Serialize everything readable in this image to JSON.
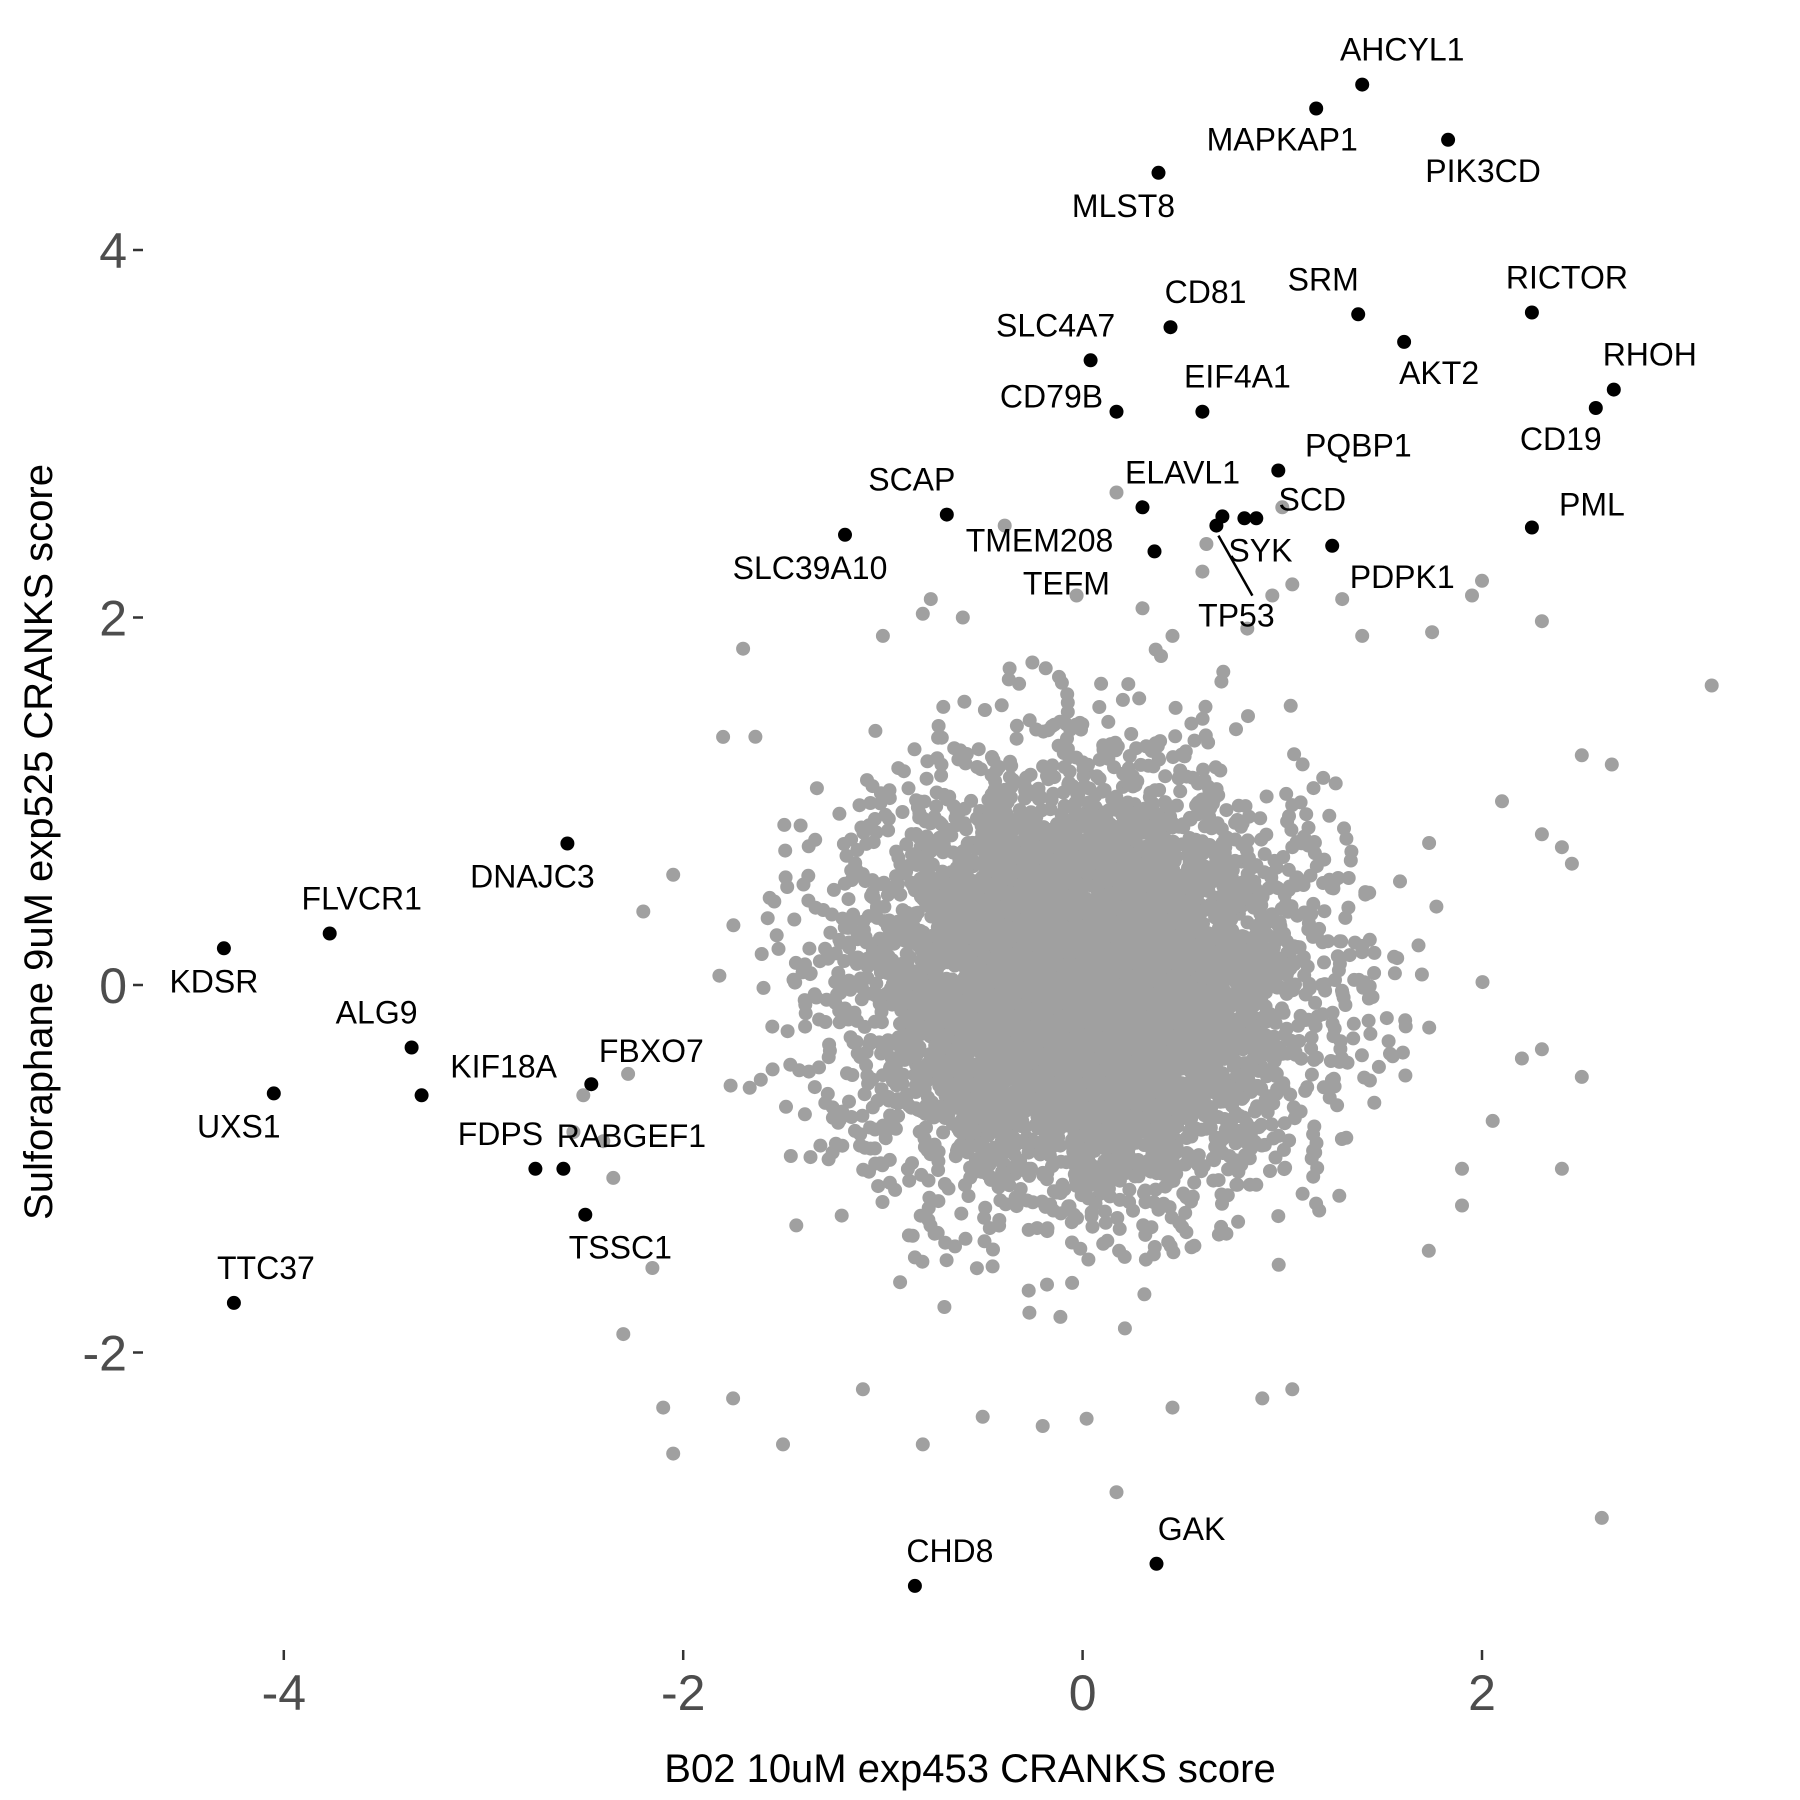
{
  "chart_data": {
    "type": "scatter",
    "xlabel": "B02 10uM exp453 CRANKS score",
    "ylabel": "Sulforaphane 9uM exp525 CRANKS score",
    "xlim": [
      -5.4,
      3.6
    ],
    "ylim": [
      -3.6,
      5.3
    ],
    "x_ticks": [
      {
        "value": -4,
        "label": "-4"
      },
      {
        "value": -2,
        "label": "-2"
      },
      {
        "value": 0,
        "label": "0"
      },
      {
        "value": 2,
        "label": "2"
      }
    ],
    "y_ticks": [
      {
        "value": -2,
        "label": "-2"
      },
      {
        "value": 0,
        "label": "0"
      },
      {
        "value": 2,
        "label": "2"
      },
      {
        "value": 4,
        "label": "4"
      }
    ],
    "grid": false,
    "background_color": "#ffffff",
    "highlight_color": "#000000",
    "background_point_color": "#a0a0a0",
    "background_cloud": {
      "description_of_distribution": "dense roughly circular cloud of unlabeled genes",
      "center": [
        0.0,
        0.0
      ],
      "sd": [
        0.55,
        0.55
      ]
    },
    "background_points": [
      {
        "x": 0.17,
        "y": 2.68
      },
      {
        "x": -0.39,
        "y": 2.5
      },
      {
        "x": -0.76,
        "y": 2.1
      },
      {
        "x": -0.6,
        "y": 2.0
      },
      {
        "x": -0.8,
        "y": 2.02
      },
      {
        "x": -1.7,
        "y": 1.83
      },
      {
        "x": -1.0,
        "y": 1.9
      },
      {
        "x": 0.95,
        "y": 2.12
      },
      {
        "x": 1.05,
        "y": 2.18
      },
      {
        "x": 1.4,
        "y": 1.9
      },
      {
        "x": 1.75,
        "y": 1.92
      },
      {
        "x": 1.95,
        "y": 2.12
      },
      {
        "x": 2.0,
        "y": 2.2
      },
      {
        "x": 2.3,
        "y": 1.98
      },
      {
        "x": 3.15,
        "y": 1.63
      },
      {
        "x": 2.5,
        "y": 1.25
      },
      {
        "x": 2.65,
        "y": 1.2
      },
      {
        "x": 2.1,
        "y": 1.0
      },
      {
        "x": 2.3,
        "y": 0.82
      },
      {
        "x": 2.4,
        "y": 0.75
      },
      {
        "x": 2.45,
        "y": 0.66
      },
      {
        "x": 2.3,
        "y": -0.35
      },
      {
        "x": 2.2,
        "y": -0.4
      },
      {
        "x": 2.5,
        "y": -0.5
      },
      {
        "x": 2.4,
        "y": -1.0
      },
      {
        "x": 1.9,
        "y": -1.0
      },
      {
        "x": 1.9,
        "y": -1.2
      },
      {
        "x": 2.6,
        "y": -2.9
      },
      {
        "x": -2.2,
        "y": 0.4
      },
      {
        "x": -2.05,
        "y": 0.6
      },
      {
        "x": -1.8,
        "y": 1.35
      },
      {
        "x": -2.3,
        "y": -1.9
      },
      {
        "x": -2.1,
        "y": -2.3
      },
      {
        "x": -2.05,
        "y": -2.55
      },
      {
        "x": -1.5,
        "y": -2.5
      },
      {
        "x": -0.8,
        "y": -2.5
      },
      {
        "x": 0.17,
        "y": -2.76
      },
      {
        "x": 0.45,
        "y": -2.3
      },
      {
        "x": 0.9,
        "y": -2.25
      },
      {
        "x": 1.05,
        "y": -2.2
      },
      {
        "x": -0.2,
        "y": -2.4
      },
      {
        "x": -0.5,
        "y": -2.35
      },
      {
        "x": 0.02,
        "y": -2.36
      },
      {
        "x": -1.75,
        "y": -2.25
      },
      {
        "x": -1.1,
        "y": -2.2
      },
      {
        "x": -2.5,
        "y": -0.6
      },
      {
        "x": -2.55,
        "y": -0.8
      },
      {
        "x": -2.4,
        "y": -0.85
      },
      {
        "x": -2.35,
        "y": -1.05
      },
      {
        "x": 1.0,
        "y": 2.6
      },
      {
        "x": 0.62,
        "y": 2.4
      },
      {
        "x": 1.3,
        "y": 2.1
      },
      {
        "x": -0.03,
        "y": 2.12
      },
      {
        "x": 0.3,
        "y": 2.05
      },
      {
        "x": 0.45,
        "y": 1.9
      },
      {
        "x": 0.6,
        "y": 2.25
      }
    ],
    "labeled_points": [
      {
        "label": "AHCYL1",
        "x": 1.4,
        "y": 4.9
      },
      {
        "label": "MAPKAP1",
        "x": 1.17,
        "y": 4.77
      },
      {
        "label": "PIK3CD",
        "x": 1.83,
        "y": 4.6
      },
      {
        "label": "MLST8",
        "x": 0.38,
        "y": 4.42
      },
      {
        "label": "CD81",
        "x": 0.44,
        "y": 3.58
      },
      {
        "label": "SRM",
        "x": 1.38,
        "y": 3.65
      },
      {
        "label": "RICTOR",
        "x": 2.25,
        "y": 3.66
      },
      {
        "label": "AKT2",
        "x": 1.61,
        "y": 3.5
      },
      {
        "label": "SLC4A7",
        "x": 0.04,
        "y": 3.4
      },
      {
        "label": "EIF4A1",
        "x": 0.6,
        "y": 3.12
      },
      {
        "label": "CD79B",
        "x": 0.17,
        "y": 3.12
      },
      {
        "label": "RHOH",
        "x": 2.66,
        "y": 3.24
      },
      {
        "label": "CD19",
        "x": 2.57,
        "y": 3.14
      },
      {
        "label": "PQBP1",
        "x": 0.98,
        "y": 2.8
      },
      {
        "label": "ELAVL1",
        "x": 0.3,
        "y": 2.6
      },
      {
        "label": "SCAP",
        "x": -0.68,
        "y": 2.56
      },
      {
        "label": "SCD",
        "x": 0.87,
        "y": 2.54
      },
      {
        "label": "PML",
        "x": 2.25,
        "y": 2.49
      },
      {
        "label": "SLC39A10",
        "x": -1.19,
        "y": 2.45
      },
      {
        "label": "TMEM208",
        "x": 0.36,
        "y": 2.36
      },
      {
        "label": "SYK",
        "x": 0.7,
        "y": 2.55
      },
      {
        "label": "TP53",
        "x": 0.67,
        "y": 2.5
      },
      {
        "label": "PDPK1",
        "x": 1.25,
        "y": 2.39
      },
      {
        "label": "TEFM",
        "x": 0.81,
        "y": 2.54
      },
      {
        "label": "DNAJC3",
        "x": -2.58,
        "y": 0.77
      },
      {
        "label": "FLVCR1",
        "x": -3.77,
        "y": 0.28
      },
      {
        "label": "KDSR",
        "x": -4.3,
        "y": 0.2
      },
      {
        "label": "ALG9",
        "x": -3.36,
        "y": -0.34
      },
      {
        "label": "FBXO7",
        "x": -2.46,
        "y": -0.54
      },
      {
        "label": "KIF18A",
        "x": -3.31,
        "y": -0.6
      },
      {
        "label": "UXS1",
        "x": -4.05,
        "y": -0.59
      },
      {
        "label": "FDPS",
        "x": -2.74,
        "y": -1.0
      },
      {
        "label": "RABGEF1",
        "x": -2.6,
        "y": -1.0
      },
      {
        "label": "TSSC1",
        "x": -2.49,
        "y": -1.25
      },
      {
        "label": "TTC37",
        "x": -4.25,
        "y": -1.73
      },
      {
        "label": "CHD8",
        "x": -0.84,
        "y": -3.27
      },
      {
        "label": "GAK",
        "x": 0.37,
        "y": -3.15
      }
    ]
  }
}
